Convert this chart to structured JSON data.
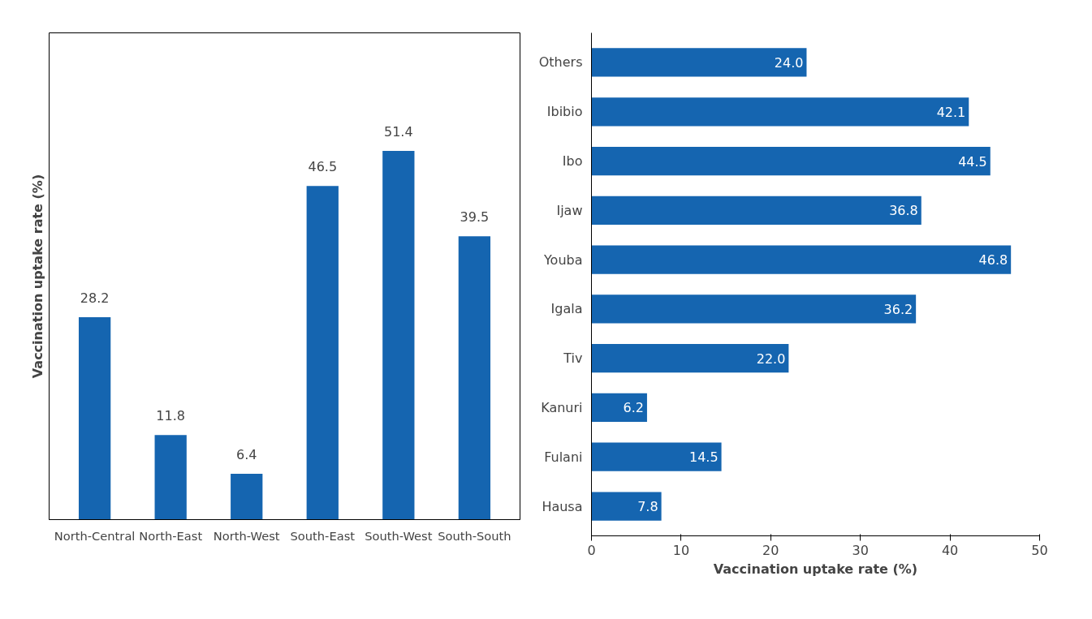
{
  "chart_data": [
    {
      "type": "bar",
      "ylabel": "Vaccination uptake rate (%)",
      "categories": [
        "North-Central",
        "North-East",
        "North-West",
        "South-East",
        "South-West",
        "South-South"
      ],
      "values": [
        28.2,
        11.8,
        6.4,
        46.5,
        51.4,
        39.5
      ],
      "color": "#1565b0",
      "data_labels": true
    },
    {
      "type": "bar",
      "orientation": "horizontal",
      "xlabel": "Vaccination uptake rate (%)",
      "categories": [
        "Others",
        "Ibibio",
        "Ibo",
        "Ijaw",
        "Youba",
        "Igala",
        "Tiv",
        "Kanuri",
        "Fulani",
        "Hausa"
      ],
      "values": [
        24,
        42.1,
        44.5,
        36.8,
        46.8,
        36.2,
        22,
        6.2,
        14.5,
        7.8
      ],
      "value_labels": [
        "24.0",
        "42.1",
        "44.5",
        "36.8",
        "46.8",
        "36.2",
        "22.0",
        "6.2",
        "14.5",
        "7.8"
      ],
      "color": "#1565b0",
      "xlim": [
        0,
        50
      ],
      "xticks": [
        0,
        10,
        20,
        30,
        40,
        50
      ]
    }
  ]
}
